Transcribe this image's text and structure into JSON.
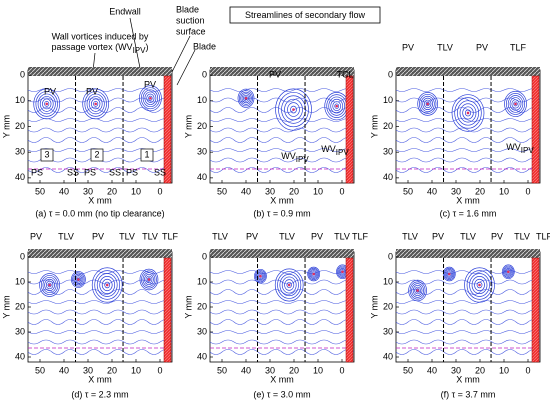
{
  "title": "Streamlines of secondary flow",
  "labels": {
    "endwall": "Endwall",
    "wall_vortices_1": "Wall vortices induced by",
    "wall_vortices_2": {
      "text": "passage vortex (WV",
      "sub": "IPV",
      "after": ")"
    },
    "blade_suction_1": "Blade",
    "blade_suction_2": "suction",
    "blade_suction_3": "surface",
    "blade": "Blade"
  },
  "panels": [
    {
      "caption": "(a) τ = 0.0 mm (no tip clearance)",
      "xlabel": "X mm",
      "ylabel": "Y mm",
      "xlim": [
        55,
        -5
      ],
      "ylim": [
        -2,
        42
      ],
      "xticks": [
        50,
        40,
        30,
        20,
        10,
        0
      ],
      "yticks": [
        0,
        10,
        20,
        30,
        40
      ],
      "annotations": [
        {
          "text": "PV"
        },
        {
          "text": "PV"
        },
        {
          "text": "PV"
        },
        {
          "text": "3"
        },
        {
          "text": "2"
        },
        {
          "text": "1"
        },
        {
          "text": "PS"
        },
        {
          "text": "SS"
        },
        {
          "text": "PS"
        },
        {
          "text": "SS"
        },
        {
          "text": "PS"
        },
        {
          "text": "SS"
        }
      ]
    },
    {
      "caption": "(b) τ = 0.9 mm",
      "xlabel": "X mm",
      "ylabel": "Y mm",
      "xlim": [
        55,
        -5
      ],
      "ylim": [
        -2,
        42
      ],
      "xticks": [
        50,
        40,
        30,
        20,
        10,
        0
      ],
      "yticks": [
        0,
        10,
        20,
        30,
        40
      ],
      "annotations": [
        {
          "text": "PV"
        },
        {
          "text": "TCL"
        },
        {
          "text": "WV",
          "sub": "IPV"
        },
        {
          "text": "WV",
          "sub": "IPV"
        }
      ]
    },
    {
      "caption": "(c) τ = 1.6 mm",
      "xlabel": "X mm",
      "ylabel": "Y mm",
      "xlim": [
        55,
        -5
      ],
      "ylim": [
        -2,
        42
      ],
      "xticks": [
        50,
        40,
        30,
        20,
        10,
        0
      ],
      "yticks": [
        0,
        10,
        20,
        30,
        40
      ],
      "annotations": [
        {
          "text": "PV"
        },
        {
          "text": "TLV"
        },
        {
          "text": "PV"
        },
        {
          "text": "TLF"
        },
        {
          "text": "WV",
          "sub": "IPV"
        }
      ]
    },
    {
      "caption": "(d) τ = 2.3 mm",
      "xlabel": "X mm",
      "ylabel": "Y mm",
      "xlim": [
        55,
        -5
      ],
      "ylim": [
        -2,
        42
      ],
      "xticks": [
        50,
        40,
        30,
        20,
        10,
        0
      ],
      "yticks": [
        0,
        10,
        20,
        30,
        40
      ],
      "annotations": [
        {
          "text": "PV"
        },
        {
          "text": "TLV"
        },
        {
          "text": "PV"
        },
        {
          "text": "TLV"
        },
        {
          "text": "TLV"
        },
        {
          "text": "TLF"
        }
      ]
    },
    {
      "caption": "(e) τ = 3.0 mm",
      "xlabel": "X mm",
      "ylabel": "Y mm",
      "xlim": [
        55,
        -5
      ],
      "ylim": [
        -2,
        42
      ],
      "xticks": [
        50,
        40,
        30,
        20,
        10,
        0
      ],
      "yticks": [
        0,
        10,
        20,
        30,
        40
      ],
      "annotations": [
        {
          "text": "TLV"
        },
        {
          "text": "PV"
        },
        {
          "text": "TLV"
        },
        {
          "text": "PV"
        },
        {
          "text": "TLV"
        },
        {
          "text": "TLF"
        }
      ]
    },
    {
      "caption": "(f) τ = 3.7 mm",
      "xlabel": "X mm",
      "ylabel": "Y mm",
      "xlim": [
        55,
        -5
      ],
      "ylim": [
        -2,
        42
      ],
      "xticks": [
        50,
        40,
        30,
        20,
        10,
        0
      ],
      "yticks": [
        0,
        10,
        20,
        30,
        40
      ],
      "annotations": [
        {
          "text": "TLV"
        },
        {
          "text": "PV"
        },
        {
          "text": "TLV"
        },
        {
          "text": "PV"
        },
        {
          "text": "TLV"
        },
        {
          "text": "TLF"
        }
      ]
    }
  ]
}
